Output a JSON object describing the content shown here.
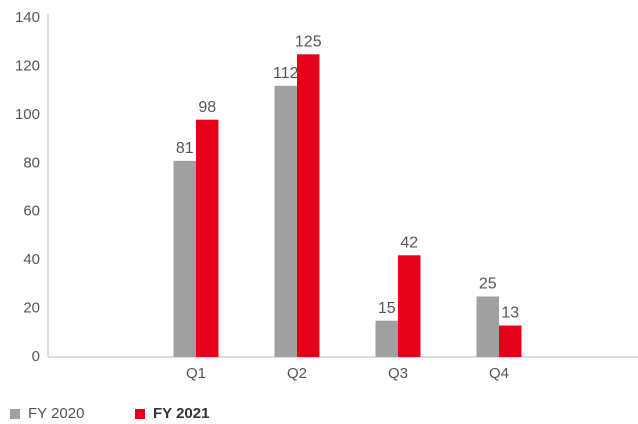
{
  "chart_data": {
    "type": "bar",
    "categories": [
      "Q1",
      "Q2",
      "Q3",
      "Q4"
    ],
    "series": [
      {
        "name": "FY 2020",
        "color": "#a0a0a0",
        "values": [
          81,
          112,
          15,
          25
        ]
      },
      {
        "name": "FY 2021",
        "color": "#e2001a",
        "values": [
          98,
          125,
          42,
          13
        ]
      }
    ],
    "ylim": [
      0,
      140
    ],
    "yticks": [
      0,
      20,
      40,
      60,
      80,
      100,
      120,
      140
    ],
    "grid": false,
    "legend": "bottom-left"
  }
}
